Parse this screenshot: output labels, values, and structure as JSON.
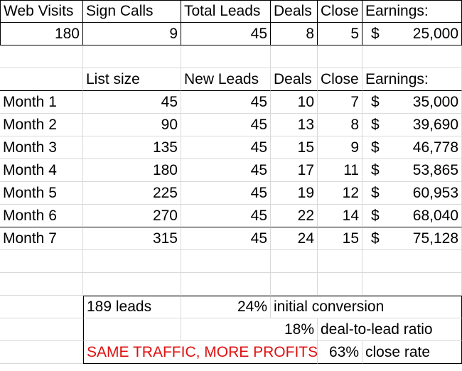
{
  "summary": {
    "headers": [
      "Web Visits",
      "Sign Calls",
      "Total Leads",
      "Deals",
      "Close",
      "Earnings:"
    ],
    "values": [
      "180",
      "9",
      "45",
      "8",
      "5"
    ],
    "earnings_currency": "$",
    "earnings_amount": "25,000"
  },
  "monthly": {
    "headers": [
      "List size",
      "New Leads",
      "Deals",
      "Close",
      "Earnings:"
    ],
    "rows": [
      {
        "label": "Month 1",
        "list": "45",
        "new": "45",
        "deals": "10",
        "close": "7",
        "cur": "$",
        "earn": "35,000"
      },
      {
        "label": "Month 2",
        "list": "90",
        "new": "45",
        "deals": "13",
        "close": "8",
        "cur": "$",
        "earn": "39,690"
      },
      {
        "label": "Month 3",
        "list": "135",
        "new": "45",
        "deals": "15",
        "close": "9",
        "cur": "$",
        "earn": "46,778"
      },
      {
        "label": "Month 4",
        "list": "180",
        "new": "45",
        "deals": "17",
        "close": "11",
        "cur": "$",
        "earn": "53,865"
      },
      {
        "label": "Month 5",
        "list": "225",
        "new": "45",
        "deals": "19",
        "close": "12",
        "cur": "$",
        "earn": "60,953"
      },
      {
        "label": "Month 6",
        "list": "270",
        "new": "45",
        "deals": "22",
        "close": "14",
        "cur": "$",
        "earn": "68,040"
      },
      {
        "label": "Month 7",
        "list": "315",
        "new": "45",
        "deals": "24",
        "close": "15",
        "cur": "$",
        "earn": "75,128"
      }
    ]
  },
  "stats": {
    "leads": "189 leads",
    "initial_pct": "24%",
    "initial_label": "initial conversion",
    "ratio_pct": "18%",
    "ratio_label": "deal-to-lead ratio",
    "slogan": "SAME TRAFFIC, MORE PROFITS.",
    "close_pct": "63%",
    "close_label": "close rate"
  }
}
